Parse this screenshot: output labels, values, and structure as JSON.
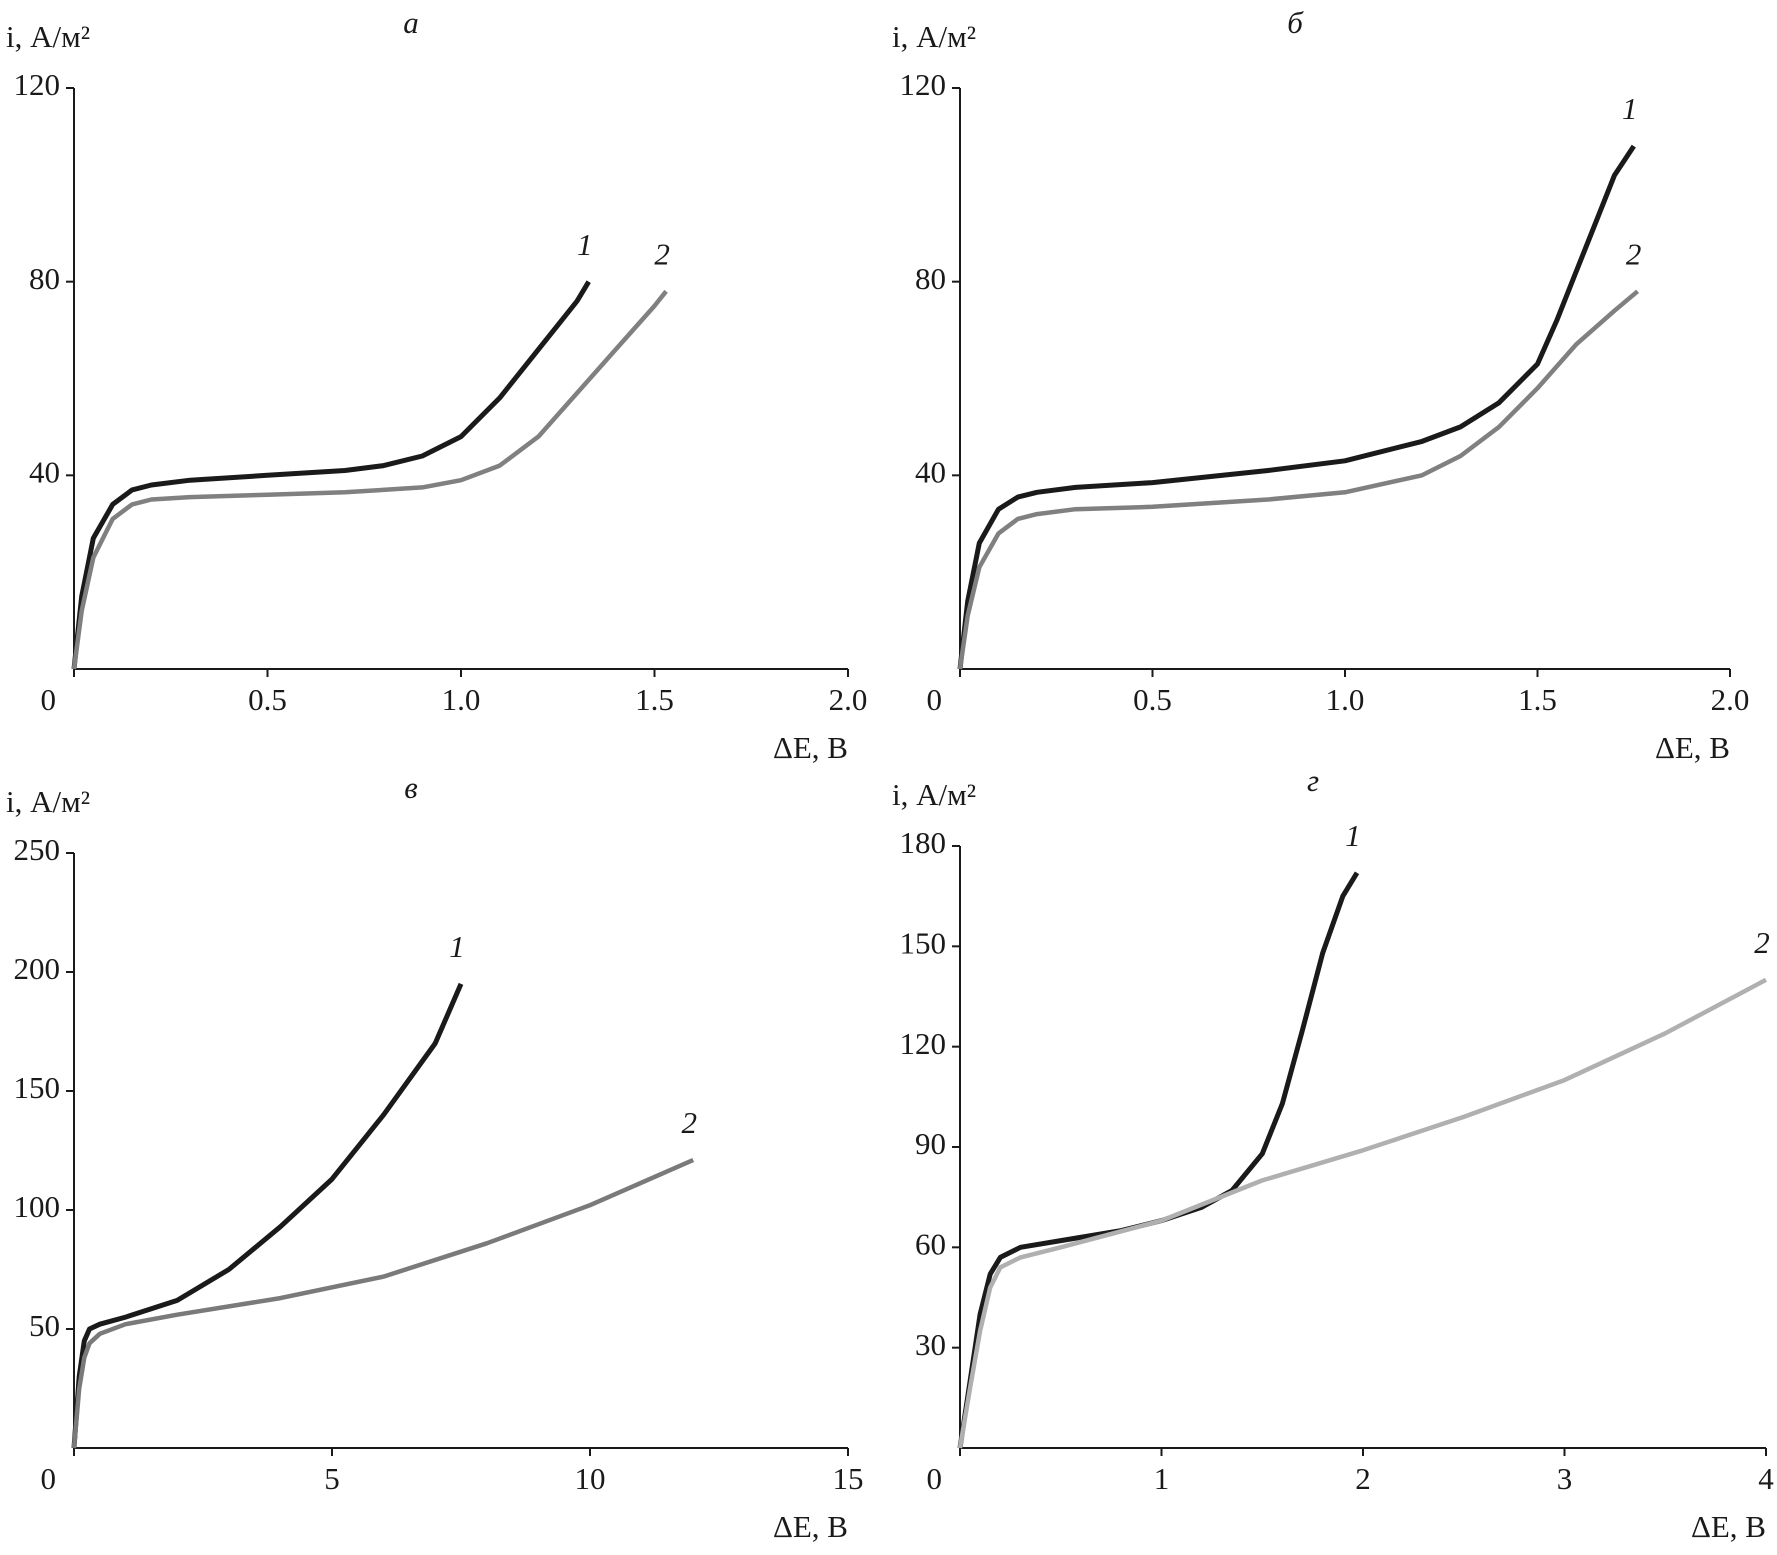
{
  "chart_data": [
    {
      "type": "line",
      "title": "а",
      "x_label": "ΔE, В",
      "y_label": "i, А/м²",
      "xlim": [
        0,
        2
      ],
      "ylim": [
        0,
        120
      ],
      "xticks": [
        0,
        0.5,
        {
          "value": 1,
          "label": "1.0"
        },
        1.5,
        {
          "value": 2,
          "label": "2.0"
        }
      ],
      "yticks": [
        40,
        80,
        120
      ],
      "series": [
        {
          "name": "1",
          "color": "#1a1a1a",
          "x": [
            0,
            0.02,
            0.05,
            0.1,
            0.15,
            0.2,
            0.3,
            0.5,
            0.7,
            0.8,
            0.9,
            1.0,
            1.1,
            1.2,
            1.25,
            1.3,
            1.33
          ],
          "values": [
            0,
            15,
            27,
            34,
            37,
            38,
            39,
            40,
            41,
            42,
            44,
            48,
            56,
            66,
            71,
            76,
            80
          ]
        },
        {
          "name": "2",
          "color": "#808080",
          "x": [
            0,
            0.02,
            0.05,
            0.1,
            0.15,
            0.2,
            0.3,
            0.5,
            0.7,
            0.9,
            1.0,
            1.1,
            1.2,
            1.3,
            1.4,
            1.5,
            1.53
          ],
          "values": [
            0,
            12,
            23,
            31,
            34,
            35,
            35.5,
            36,
            36.5,
            37.5,
            39,
            42,
            48,
            57,
            66,
            75,
            78
          ]
        }
      ]
    },
    {
      "type": "line",
      "title": "б",
      "x_label": "ΔE, В",
      "y_label": "i, А/м²",
      "xlim": [
        0,
        2
      ],
      "ylim": [
        0,
        120
      ],
      "xticks": [
        0,
        0.5,
        {
          "value": 1,
          "label": "1.0"
        },
        1.5,
        {
          "value": 2,
          "label": "2.0"
        }
      ],
      "yticks": [
        40,
        80,
        120
      ],
      "series": [
        {
          "name": "1",
          "color": "#1a1a1a",
          "x": [
            0,
            0.02,
            0.05,
            0.1,
            0.15,
            0.2,
            0.3,
            0.5,
            0.8,
            1.0,
            1.2,
            1.3,
            1.4,
            1.5,
            1.55,
            1.6,
            1.65,
            1.7,
            1.75
          ],
          "values": [
            0,
            14,
            26,
            33,
            35.5,
            36.5,
            37.5,
            38.5,
            41,
            43,
            47,
            50,
            55,
            63,
            72,
            82,
            92,
            102,
            108
          ]
        },
        {
          "name": "2",
          "color": "#808080",
          "x": [
            0,
            0.02,
            0.05,
            0.1,
            0.15,
            0.2,
            0.3,
            0.5,
            0.8,
            1.0,
            1.2,
            1.3,
            1.4,
            1.5,
            1.6,
            1.7,
            1.76
          ],
          "values": [
            0,
            11,
            21,
            28,
            31,
            32,
            33,
            33.5,
            35,
            36.5,
            40,
            44,
            50,
            58,
            67,
            74,
            78
          ]
        }
      ]
    },
    {
      "type": "line",
      "title": "в",
      "x_label": "ΔE, В",
      "y_label": "i, А/м²",
      "xlim": [
        0,
        15
      ],
      "ylim": [
        0,
        250
      ],
      "xticks": [
        0,
        5,
        10,
        15
      ],
      "yticks": [
        50,
        100,
        150,
        200,
        250
      ],
      "series": [
        {
          "name": "1",
          "color": "#1a1a1a",
          "x": [
            0,
            0.1,
            0.2,
            0.3,
            0.5,
            1,
            2,
            3,
            4,
            5,
            6,
            7,
            7.5
          ],
          "values": [
            0,
            30,
            45,
            50,
            52,
            55,
            62,
            75,
            93,
            113,
            140,
            170,
            195
          ]
        },
        {
          "name": "2",
          "color": "#7a7a7a",
          "x": [
            0,
            0.1,
            0.2,
            0.3,
            0.5,
            1,
            2,
            4,
            6,
            8,
            10,
            12
          ],
          "values": [
            0,
            25,
            38,
            44,
            48,
            52,
            56,
            63,
            72,
            86,
            102,
            121
          ]
        }
      ]
    },
    {
      "type": "line",
      "title": "г",
      "x_label": "ΔE, В",
      "y_label": "i, А/м²",
      "xlim": [
        0,
        4
      ],
      "ylim": [
        0,
        180
      ],
      "xticks": [
        0,
        1,
        2,
        3,
        4
      ],
      "yticks": [
        30,
        60,
        90,
        120,
        150,
        180
      ],
      "series": [
        {
          "name": "1",
          "color": "#1a1a1a",
          "x": [
            0,
            0.05,
            0.1,
            0.15,
            0.2,
            0.3,
            0.5,
            0.8,
            1,
            1.2,
            1.35,
            1.5,
            1.6,
            1.7,
            1.8,
            1.9,
            1.97
          ],
          "values": [
            0,
            20,
            40,
            52,
            57,
            60,
            62,
            65,
            68,
            72,
            77,
            88,
            103,
            125,
            148,
            165,
            172
          ]
        },
        {
          "name": "2",
          "color": "#b0b0b0",
          "x": [
            0,
            0.05,
            0.1,
            0.15,
            0.2,
            0.3,
            0.5,
            1,
            1.5,
            2,
            2.5,
            3,
            3.5,
            4
          ],
          "values": [
            0,
            18,
            35,
            48,
            54,
            57,
            60,
            68,
            80,
            89,
            99,
            110,
            124,
            140
          ]
        }
      ]
    }
  ]
}
